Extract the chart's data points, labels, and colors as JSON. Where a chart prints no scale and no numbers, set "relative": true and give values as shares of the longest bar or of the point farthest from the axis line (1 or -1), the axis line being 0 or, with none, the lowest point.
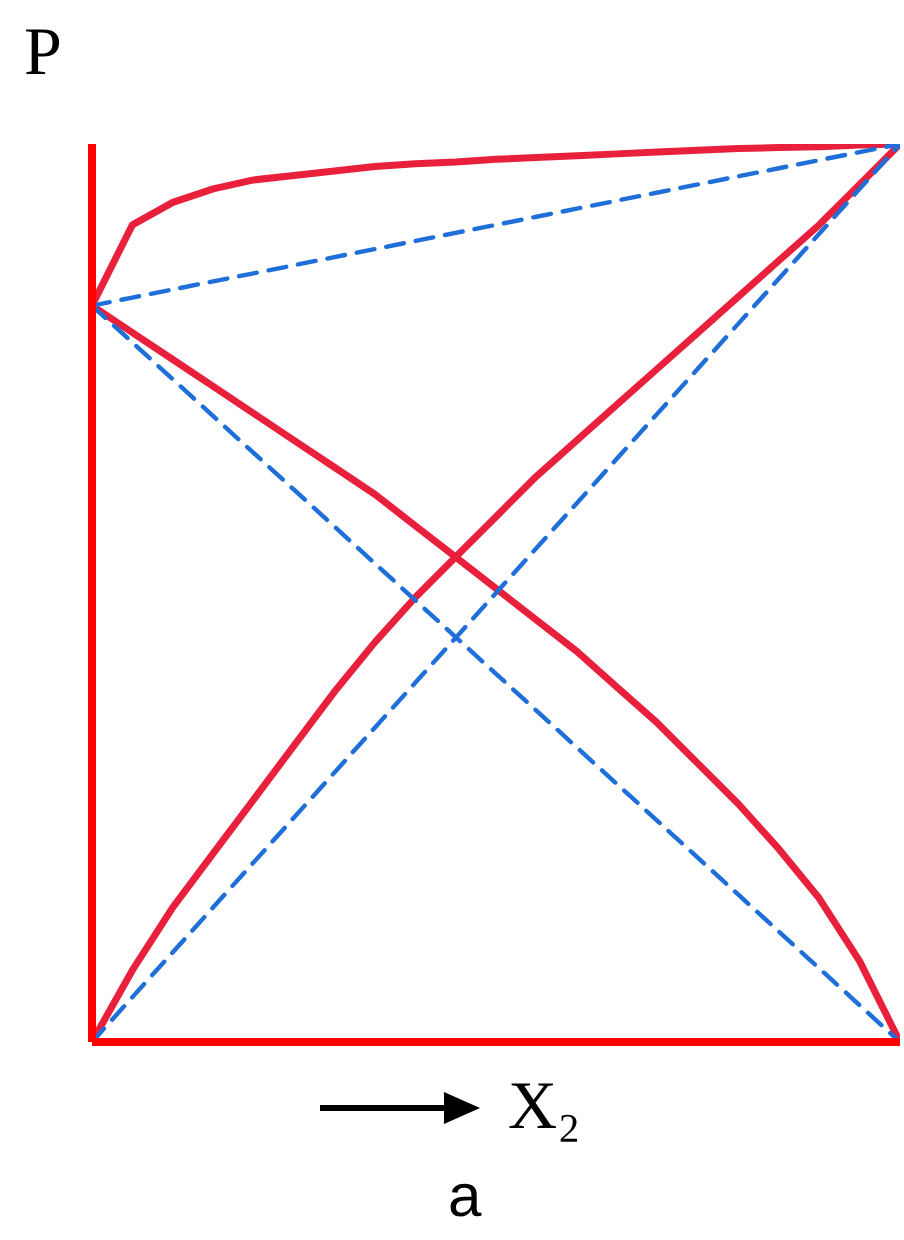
{
  "chart_data": {
    "type": "line",
    "relative": true,
    "ylabel": "P",
    "xlabel": "X₂",
    "annotations": [
      "a"
    ],
    "grid": false,
    "marker": "none",
    "categories": [
      null,
      null,
      null,
      null,
      null,
      null,
      null,
      null,
      null,
      null,
      null,
      null,
      null,
      null,
      null,
      null,
      null,
      null,
      null,
      null,
      null
    ],
    "series": [
      {
        "color": "#e8203c",
        "line_style": "solid",
        "values": [
          0.82,
          0.91,
          0.935,
          0.95,
          0.96,
          0.965,
          0.97,
          0.975,
          0.978,
          0.98,
          0.983,
          0.985,
          0.987,
          0.989,
          0.991,
          0.993,
          0.995,
          0.996,
          0.997,
          0.999,
          1
        ]
      },
      {
        "color": "#e8203c",
        "line_style": "solid",
        "values": [
          0.82,
          0.79,
          0.76,
          0.73,
          0.7,
          0.67,
          0.64,
          0.61,
          0.575,
          0.54,
          0.505,
          0.47,
          0.435,
          0.395,
          0.355,
          0.31,
          0.265,
          0.215,
          0.16,
          0.09,
          0
        ]
      },
      {
        "color": "#e8203c",
        "line_style": "solid",
        "values": [
          0,
          0.08,
          0.15,
          0.21,
          0.27,
          0.33,
          0.39,
          0.445,
          0.495,
          0.54,
          0.585,
          0.63,
          0.67,
          0.71,
          0.75,
          0.79,
          0.83,
          0.87,
          0.91,
          0.955,
          1
        ]
      },
      {
        "color": "#1e6fd9",
        "line_style": "dashed",
        "values": [
          0.82,
          0.829,
          0.838,
          0.847,
          0.856,
          0.865,
          0.874,
          0.883,
          0.892,
          0.901,
          0.91,
          0.919,
          0.928,
          0.937,
          0.946,
          0.955,
          0.964,
          0.973,
          0.982,
          0.991,
          1
        ]
      },
      {
        "color": "#1e6fd9",
        "line_style": "dashed",
        "values": [
          0.82,
          0.779,
          0.738,
          0.697,
          0.656,
          0.615,
          0.574,
          0.533,
          0.492,
          0.451,
          0.41,
          0.369,
          0.328,
          0.287,
          0.246,
          0.205,
          0.164,
          0.123,
          0.082,
          0.041,
          0
        ]
      },
      {
        "color": "#1e6fd9",
        "line_style": "dashed",
        "values": [
          0,
          0.05,
          0.1,
          0.15,
          0.2,
          0.25,
          0.3,
          0.35,
          0.4,
          0.45,
          0.5,
          0.55,
          0.6,
          0.65,
          0.7,
          0.75,
          0.8,
          0.85,
          0.9,
          0.95,
          1
        ]
      }
    ]
  }
}
